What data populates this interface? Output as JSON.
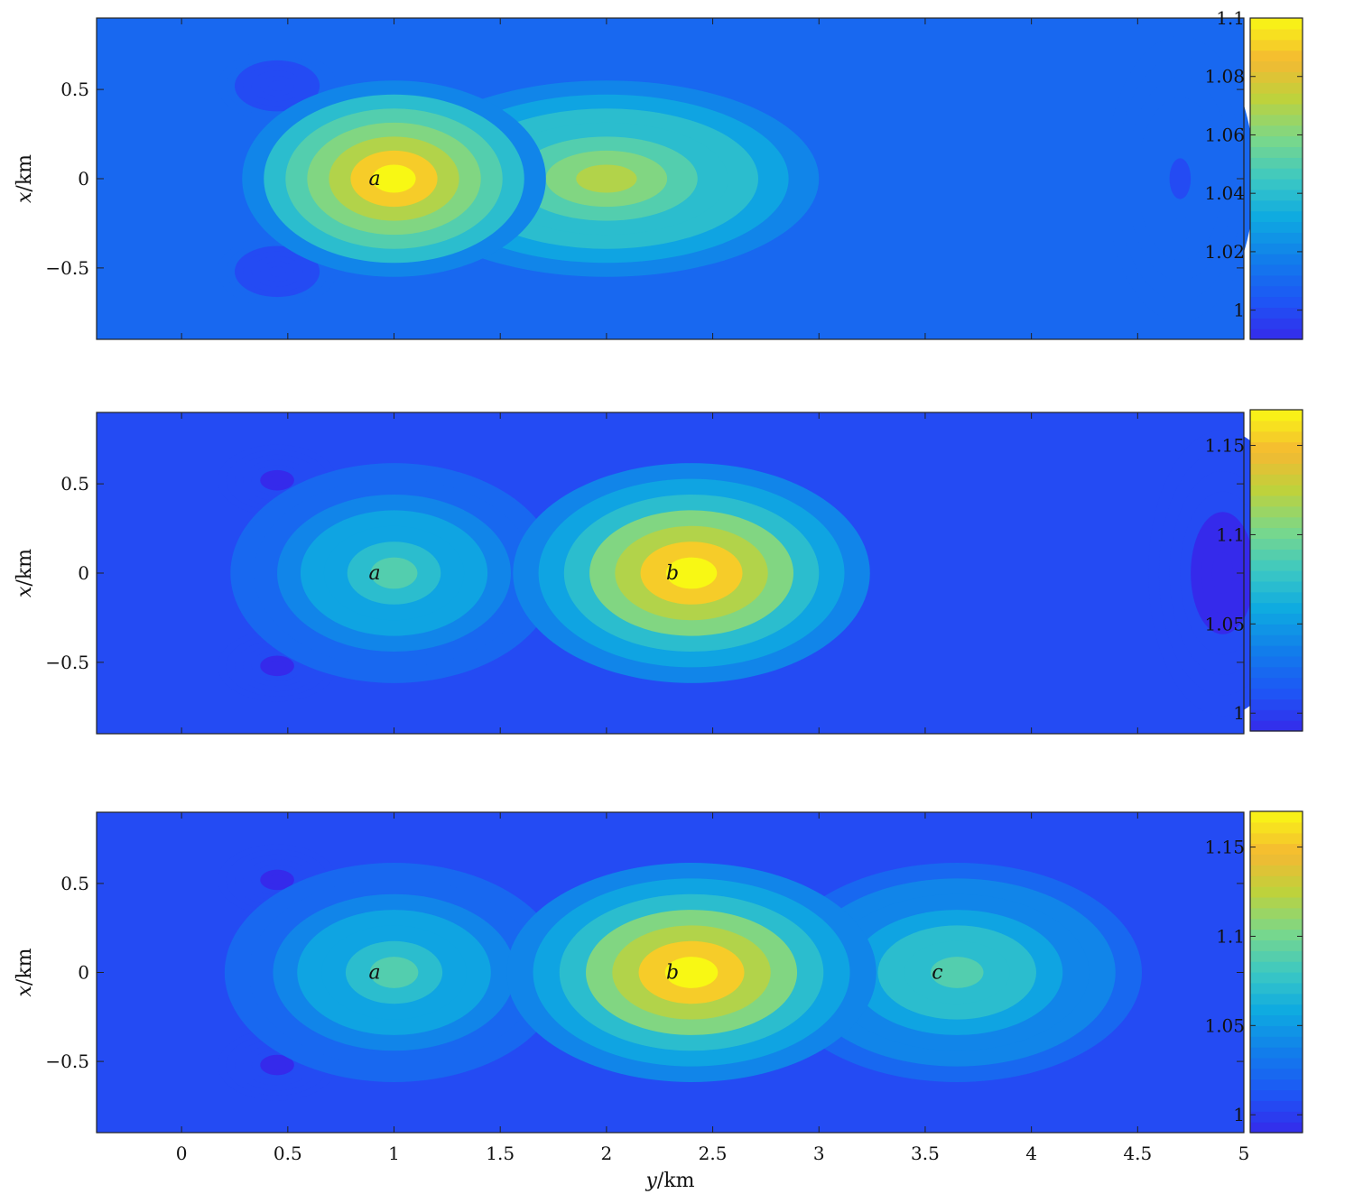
{
  "chart_data": [
    {
      "type": "heatmap",
      "panel": "top",
      "xlabel": "",
      "ylabel_var": "x",
      "ylabel_unit": "/km",
      "xlim": [
        -0.4,
        5.0
      ],
      "ylim": [
        -0.9,
        0.9
      ],
      "yticks": [
        0.5,
        0,
        -0.5
      ],
      "ytick_labels": [
        "0.5",
        "0",
        "−0.5"
      ],
      "xtick_labels_shown": false,
      "colorbar": {
        "range": [
          0.99,
          1.1
        ],
        "ticks": [
          1.1,
          1.08,
          1.06,
          1.04,
          1.02,
          1.0
        ],
        "tick_labels": [
          "1.1",
          "1.08",
          "1.06",
          "1.04",
          "1.02",
          "1"
        ]
      },
      "background_value": 1.01,
      "features": [
        {
          "kind": "peak",
          "label": "a",
          "y": 1.0,
          "x": 0.0,
          "value": 1.1
        },
        {
          "kind": "plateau",
          "y": 2.0,
          "x": 0.0,
          "value": 1.07
        },
        {
          "kind": "trough",
          "y": 0.45,
          "x": 0.52,
          "value": 0.995
        },
        {
          "kind": "trough",
          "y": 0.45,
          "x": -0.52,
          "value": 0.995
        },
        {
          "kind": "low-band",
          "y": 4.7,
          "x": 0.0,
          "value": 1.005
        }
      ]
    },
    {
      "type": "heatmap",
      "panel": "middle",
      "xlabel": "",
      "ylabel_var": "x",
      "ylabel_unit": "/km",
      "xlim": [
        -0.4,
        5.0
      ],
      "ylim": [
        -0.9,
        0.9
      ],
      "yticks": [
        0.5,
        0,
        -0.5
      ],
      "ytick_labels": [
        "0.5",
        "0",
        "−0.5"
      ],
      "xtick_labels_shown": false,
      "colorbar": {
        "range": [
          0.99,
          1.17
        ],
        "ticks": [
          1.15,
          1.1,
          1.05,
          1.0
        ],
        "tick_labels": [
          "1.15",
          "1.1",
          "1.05",
          "1"
        ]
      },
      "background_value": 1.01,
      "features": [
        {
          "kind": "peak",
          "label": "a",
          "y": 1.0,
          "x": 0.0,
          "value": 1.08
        },
        {
          "kind": "peak",
          "label": "b",
          "y": 2.4,
          "x": 0.0,
          "value": 1.17
        },
        {
          "kind": "trough",
          "y": 0.45,
          "x": 0.52,
          "value": 0.995
        },
        {
          "kind": "trough",
          "y": 0.45,
          "x": -0.52,
          "value": 0.995
        },
        {
          "kind": "low-band",
          "y": 4.9,
          "x": 0.0,
          "value": 0.99
        }
      ]
    },
    {
      "type": "heatmap",
      "panel": "bottom",
      "xlabel_var": "y",
      "xlabel_unit": "/km",
      "ylabel_var": "x",
      "ylabel_unit": "/km",
      "xlim": [
        -0.4,
        5.0
      ],
      "ylim": [
        -0.9,
        0.9
      ],
      "xticks": [
        0,
        0.5,
        1,
        1.5,
        2,
        2.5,
        3,
        3.5,
        4,
        4.5,
        5
      ],
      "xtick_labels": [
        "0",
        "0.5",
        "1",
        "1.5",
        "2",
        "2.5",
        "3",
        "3.5",
        "4",
        "4.5",
        "5"
      ],
      "yticks": [
        0.5,
        0,
        -0.5
      ],
      "ytick_labels": [
        "0.5",
        "0",
        "−0.5"
      ],
      "xtick_labels_shown": true,
      "colorbar": {
        "range": [
          0.99,
          1.17
        ],
        "ticks": [
          1.15,
          1.1,
          1.05,
          1.0
        ],
        "tick_labels": [
          "1.15",
          "1.1",
          "1.05",
          "1"
        ]
      },
      "background_value": 1.01,
      "features": [
        {
          "kind": "peak",
          "label": "a",
          "y": 1.0,
          "x": 0.0,
          "value": 1.08
        },
        {
          "kind": "peak",
          "label": "b",
          "y": 2.4,
          "x": 0.0,
          "value": 1.17
        },
        {
          "kind": "peak",
          "label": "c",
          "y": 3.65,
          "x": 0.0,
          "value": 1.09
        },
        {
          "kind": "trough",
          "y": 0.45,
          "x": 0.52,
          "value": 0.995
        },
        {
          "kind": "trough",
          "y": 0.45,
          "x": -0.52,
          "value": 0.995
        }
      ]
    }
  ]
}
